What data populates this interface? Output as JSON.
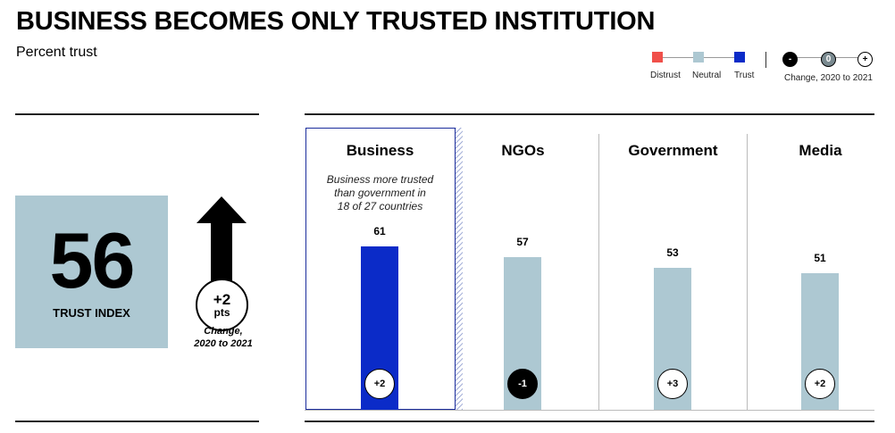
{
  "header": {
    "title": "BUSINESS BECOMES ONLY TRUSTED INSTITUTION",
    "subtitle": "Percent trust"
  },
  "legend": {
    "items": [
      {
        "label": "Distrust",
        "color": "#f0504a"
      },
      {
        "label": "Neutral",
        "color": "#adc8d2"
      },
      {
        "label": "Trust",
        "color": "#0b2bc8"
      }
    ],
    "change_marks": [
      "-",
      "0",
      "+"
    ],
    "change_label": "Change, 2020 to 2021"
  },
  "trust_index": {
    "value": "56",
    "label": "TRUST INDEX",
    "change_value": "+2",
    "change_unit": "pts",
    "change_caption_line1": "Change,",
    "change_caption_line2": "2020 to 2021"
  },
  "chart_data": {
    "type": "bar",
    "categories": [
      "Business",
      "NGOs",
      "Government",
      "Media"
    ],
    "values": [
      61,
      57,
      53,
      51
    ],
    "value_labels": [
      "61",
      "57",
      "53",
      "51"
    ],
    "changes": [
      "+2",
      "-1",
      "+3",
      "+2"
    ],
    "bar_colors": [
      "#0b2bc8",
      "#adc8d2",
      "#adc8d2",
      "#adc8d2"
    ],
    "highlight_category": "Business",
    "note_lines": [
      "Business more trusted",
      "than government in",
      "18 of 27 countries"
    ],
    "ylim": [
      0,
      100
    ],
    "grid": false,
    "legend_position": "top-right"
  }
}
